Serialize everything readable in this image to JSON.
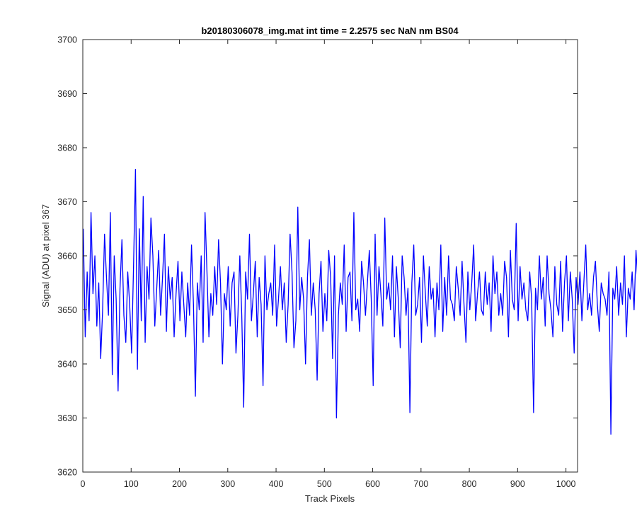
{
  "chart_data": {
    "type": "line",
    "title": "b20180306078_img.mat int time = 2.2575 sec  NaN nm BS04",
    "xlabel": "Track Pixels",
    "ylabel": "Signal (ADU) at pixel 367",
    "xlim": [
      0,
      1024
    ],
    "ylim": [
      3620,
      3700
    ],
    "xticks": [
      0,
      100,
      200,
      300,
      400,
      500,
      600,
      700,
      800,
      900,
      1000
    ],
    "yticks": [
      3620,
      3630,
      3640,
      3650,
      3660,
      3670,
      3680,
      3690,
      3700
    ],
    "grid": false,
    "line_color": "#0000ff",
    "series": [
      {
        "x_start": 1,
        "x_step": 4,
        "values_note": "",
        "values": [
          3665,
          3645,
          3657,
          3648,
          3668,
          3653,
          3660,
          3647,
          3655,
          3641,
          3650,
          3664,
          3656,
          3649,
          3668,
          3638,
          3660,
          3652,
          3635,
          3654,
          3663,
          3649,
          3644,
          3657,
          3651,
          3642,
          3658,
          3676,
          3639,
          3665,
          3648,
          3671,
          3644,
          3658,
          3652,
          3667,
          3660,
          3647,
          3654,
          3661,
          3649,
          3656,
          3664,
          3646,
          3658,
          3652,
          3656,
          3645,
          3653,
          3659,
          3648,
          3657,
          3651,
          3645,
          3655,
          3649,
          3662,
          3651,
          3634,
          3655,
          3650,
          3660,
          3644,
          3668,
          3657,
          3645,
          3653,
          3649,
          3658,
          3651,
          3663,
          3655,
          3640,
          3653,
          3650,
          3658,
          3647,
          3655,
          3657,
          3642,
          3649,
          3660,
          3649,
          3632,
          3657,
          3652,
          3664,
          3648,
          3653,
          3659,
          3645,
          3656,
          3651,
          3636,
          3660,
          3650,
          3653,
          3655,
          3649,
          3662,
          3647,
          3652,
          3658,
          3650,
          3655,
          3644,
          3651,
          3664,
          3657,
          3643,
          3648,
          3669,
          3650,
          3656,
          3652,
          3640,
          3656,
          3663,
          3649,
          3655,
          3650,
          3637,
          3653,
          3659,
          3646,
          3653,
          3648,
          3661,
          3656,
          3641,
          3660,
          3630,
          3649,
          3655,
          3651,
          3662,
          3646,
          3656,
          3657,
          3648,
          3668,
          3650,
          3652,
          3646,
          3659,
          3655,
          3649,
          3655,
          3661,
          3652,
          3636,
          3664,
          3649,
          3658,
          3653,
          3647,
          3667,
          3652,
          3655,
          3650,
          3660,
          3645,
          3658,
          3652,
          3643,
          3660,
          3656,
          3649,
          3654,
          3631,
          3655,
          3662,
          3649,
          3651,
          3656,
          3644,
          3660,
          3653,
          3647,
          3658,
          3652,
          3654,
          3645,
          3655,
          3650,
          3662,
          3646,
          3656,
          3649,
          3660,
          3652,
          3651,
          3648,
          3658,
          3654,
          3649,
          3659,
          3651,
          3644,
          3657,
          3650,
          3655,
          3662,
          3648,
          3653,
          3657,
          3650,
          3649,
          3657,
          3651,
          3655,
          3646,
          3660,
          3653,
          3657,
          3649,
          3653,
          3649,
          3659,
          3656,
          3645,
          3661,
          3652,
          3650,
          3666,
          3648,
          3658,
          3652,
          3655,
          3650,
          3648,
          3657,
          3652,
          3631,
          3654,
          3650,
          3660,
          3652,
          3656,
          3647,
          3660,
          3653,
          3650,
          3645,
          3658,
          3651,
          3649,
          3659,
          3646,
          3655,
          3660,
          3648,
          3657,
          3652,
          3642,
          3656,
          3651,
          3657,
          3648,
          3655,
          3662,
          3650,
          3653,
          3649,
          3656,
          3659,
          3651,
          3646,
          3655,
          3653,
          3652,
          3649,
          3657,
          3627,
          3654,
          3652,
          3658,
          3649,
          3655,
          3651,
          3660,
          3645,
          3654,
          3652,
          3657,
          3650,
          3661,
          3655,
          3649,
          3666,
          3648,
          3655,
          3645,
          3658,
          3652,
          3647,
          3659,
          3655,
          3651,
          3662,
          3649,
          3654,
          3659,
          3650,
          3655,
          3663,
          3649,
          3660,
          3651,
          3654,
          3657,
          3648,
          3653,
          3658,
          3650,
          3656,
          3652,
          3660,
          3648,
          3653,
          3647,
          3661,
          3654,
          3650,
          3656,
          3652,
          3658,
          3651,
          3657,
          3649,
          3653,
          3656,
          3650,
          3655,
          3652
        ]
      }
    ],
    "annotations": []
  }
}
